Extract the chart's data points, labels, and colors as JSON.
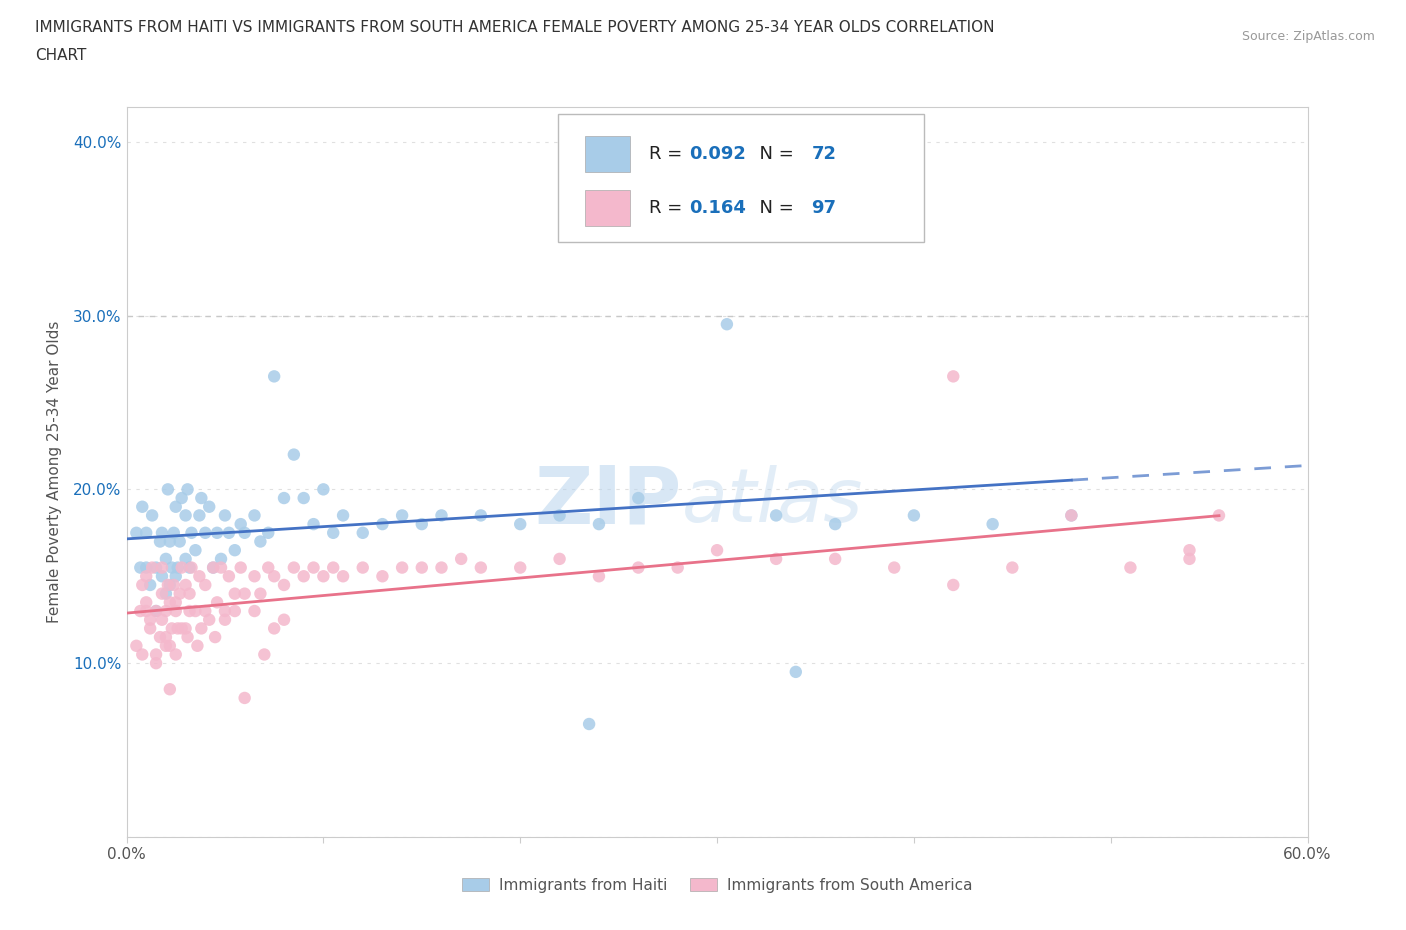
{
  "title_line1": "IMMIGRANTS FROM HAITI VS IMMIGRANTS FROM SOUTH AMERICA FEMALE POVERTY AMONG 25-34 YEAR OLDS CORRELATION",
  "title_line2": "CHART",
  "source_text": "Source: ZipAtlas.com",
  "ylabel": "Female Poverty Among 25-34 Year Olds",
  "xlim": [
    0.0,
    0.6
  ],
  "ylim": [
    0.0,
    0.42
  ],
  "haiti_color": "#a8cce8",
  "sa_color": "#f4b8cc",
  "haiti_R": 0.092,
  "haiti_N": 72,
  "sa_R": 0.164,
  "sa_N": 97,
  "haiti_trend_color": "#4472c4",
  "sa_trend_color": "#e8728a",
  "dashed_line_y": 0.3,
  "dashed_line_color": "#c8c8c8",
  "watermark_text": "ZIPatlas",
  "watermark_color": "#cce0f0",
  "background_color": "#ffffff",
  "title_color": "#333333",
  "axis_color": "#555555",
  "r_value_color": "#1a6fba",
  "grid_color": "#e0e0e0",
  "haiti_x": [
    0.005,
    0.007,
    0.008,
    0.01,
    0.01,
    0.012,
    0.013,
    0.015,
    0.015,
    0.017,
    0.018,
    0.018,
    0.02,
    0.02,
    0.021,
    0.022,
    0.022,
    0.023,
    0.024,
    0.025,
    0.025,
    0.026,
    0.027,
    0.028,
    0.03,
    0.03,
    0.031,
    0.032,
    0.033,
    0.035,
    0.037,
    0.038,
    0.04,
    0.042,
    0.044,
    0.046,
    0.048,
    0.05,
    0.052,
    0.055,
    0.058,
    0.06,
    0.065,
    0.068,
    0.072,
    0.075,
    0.08,
    0.085,
    0.09,
    0.095,
    0.1,
    0.105,
    0.11,
    0.12,
    0.13,
    0.14,
    0.15,
    0.16,
    0.18,
    0.2,
    0.22,
    0.24,
    0.26,
    0.29,
    0.305,
    0.33,
    0.36,
    0.4,
    0.44,
    0.48,
    0.235,
    0.34
  ],
  "haiti_y": [
    0.175,
    0.155,
    0.19,
    0.155,
    0.175,
    0.145,
    0.185,
    0.13,
    0.155,
    0.17,
    0.15,
    0.175,
    0.14,
    0.16,
    0.2,
    0.145,
    0.17,
    0.155,
    0.175,
    0.15,
    0.19,
    0.155,
    0.17,
    0.195,
    0.16,
    0.185,
    0.2,
    0.155,
    0.175,
    0.165,
    0.185,
    0.195,
    0.175,
    0.19,
    0.155,
    0.175,
    0.16,
    0.185,
    0.175,
    0.165,
    0.18,
    0.175,
    0.185,
    0.17,
    0.175,
    0.265,
    0.195,
    0.22,
    0.195,
    0.18,
    0.2,
    0.175,
    0.185,
    0.175,
    0.18,
    0.185,
    0.18,
    0.185,
    0.185,
    0.18,
    0.185,
    0.18,
    0.195,
    0.385,
    0.295,
    0.185,
    0.18,
    0.185,
    0.18,
    0.185,
    0.065,
    0.095
  ],
  "sa_x": [
    0.005,
    0.007,
    0.008,
    0.01,
    0.01,
    0.012,
    0.013,
    0.015,
    0.015,
    0.017,
    0.018,
    0.018,
    0.02,
    0.02,
    0.021,
    0.022,
    0.022,
    0.023,
    0.024,
    0.025,
    0.025,
    0.026,
    0.027,
    0.028,
    0.03,
    0.03,
    0.031,
    0.032,
    0.033,
    0.035,
    0.037,
    0.038,
    0.04,
    0.042,
    0.044,
    0.046,
    0.048,
    0.05,
    0.052,
    0.055,
    0.058,
    0.06,
    0.065,
    0.068,
    0.072,
    0.075,
    0.08,
    0.085,
    0.09,
    0.095,
    0.1,
    0.105,
    0.11,
    0.12,
    0.13,
    0.14,
    0.15,
    0.16,
    0.17,
    0.18,
    0.2,
    0.22,
    0.24,
    0.26,
    0.28,
    0.3,
    0.33,
    0.36,
    0.39,
    0.42,
    0.45,
    0.48,
    0.51,
    0.54,
    0.42,
    0.54,
    0.555,
    0.008,
    0.01,
    0.012,
    0.015,
    0.018,
    0.02,
    0.022,
    0.025,
    0.028,
    0.032,
    0.036,
    0.04,
    0.045,
    0.05,
    0.055,
    0.06,
    0.065,
    0.07,
    0.075,
    0.08
  ],
  "sa_y": [
    0.11,
    0.13,
    0.105,
    0.135,
    0.15,
    0.12,
    0.155,
    0.1,
    0.13,
    0.115,
    0.14,
    0.155,
    0.11,
    0.13,
    0.145,
    0.11,
    0.135,
    0.12,
    0.145,
    0.105,
    0.135,
    0.12,
    0.14,
    0.155,
    0.12,
    0.145,
    0.115,
    0.14,
    0.155,
    0.13,
    0.15,
    0.12,
    0.145,
    0.125,
    0.155,
    0.135,
    0.155,
    0.13,
    0.15,
    0.14,
    0.155,
    0.14,
    0.15,
    0.14,
    0.155,
    0.15,
    0.145,
    0.155,
    0.15,
    0.155,
    0.15,
    0.155,
    0.15,
    0.155,
    0.15,
    0.155,
    0.155,
    0.155,
    0.16,
    0.155,
    0.155,
    0.16,
    0.15,
    0.155,
    0.155,
    0.165,
    0.16,
    0.16,
    0.155,
    0.265,
    0.155,
    0.185,
    0.155,
    0.165,
    0.145,
    0.16,
    0.185,
    0.145,
    0.13,
    0.125,
    0.105,
    0.125,
    0.115,
    0.085,
    0.13,
    0.12,
    0.13,
    0.11,
    0.13,
    0.115,
    0.125,
    0.13,
    0.08,
    0.13,
    0.105,
    0.12,
    0.125
  ]
}
